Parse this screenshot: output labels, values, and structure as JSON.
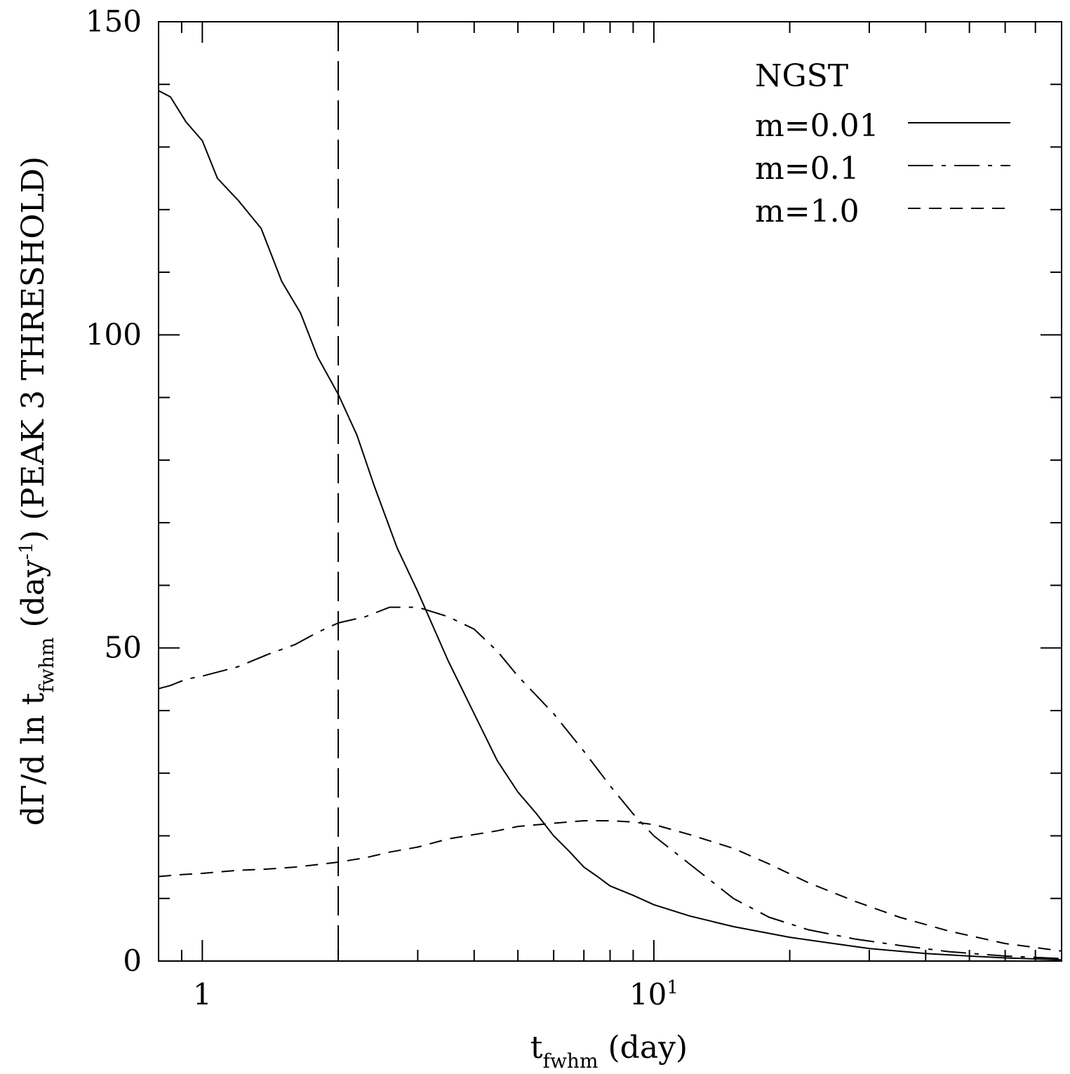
{
  "colors": {
    "ink": "#000000",
    "background": "#ffffff"
  },
  "chart_data": {
    "type": "line",
    "x_scale": "log",
    "xlim": [
      0.8,
      80
    ],
    "ylim": [
      0,
      150
    ],
    "xlabel": "t",
    "xlabel_sub": "fwhm",
    "xlabel_unit": " (day)",
    "ylabel_prefix": "dΓ/d ln t",
    "ylabel_sub": "fwhm",
    "ylabel_mid": " (day",
    "ylabel_sup": "-1",
    "ylabel_suffix": ")  (PEAK 3 THRESHOLD)",
    "x_tick_labels": [
      {
        "value": 1,
        "label": "1"
      },
      {
        "value": 10,
        "label": "10",
        "sup": "1"
      }
    ],
    "y_tick_labels": [
      {
        "value": 0,
        "label": "0"
      },
      {
        "value": 50,
        "label": "50"
      },
      {
        "value": 100,
        "label": "100"
      },
      {
        "value": 150,
        "label": "150"
      }
    ],
    "legend_title": "NGST",
    "legend_position": "top-right",
    "vertical_line": {
      "x": 2.0,
      "style": "long-dash"
    },
    "series": [
      {
        "name": "m=0.01",
        "style": "solid",
        "x": [
          0.8,
          0.85,
          0.92,
          1.0,
          1.08,
          1.2,
          1.35,
          1.5,
          1.65,
          1.8,
          2.0,
          2.2,
          2.4,
          2.7,
          3.0,
          3.5,
          4.0,
          4.5,
          5.0,
          5.5,
          6.0,
          6.5,
          7.0,
          7.5,
          8.0,
          9.0,
          10.0,
          12.0,
          15.0,
          20.0,
          25.0,
          30.0,
          40.0,
          50.0,
          60.0,
          80.0
        ],
        "y": [
          139,
          138,
          134,
          131,
          125,
          121.5,
          117,
          108.5,
          103.5,
          96.5,
          90.5,
          84,
          76,
          66,
          59,
          48,
          39.5,
          32,
          27,
          23.5,
          20,
          17.5,
          15,
          13.5,
          12,
          10.5,
          9,
          7.2,
          5.5,
          3.8,
          2.8,
          2.0,
          1.2,
          0.8,
          0.5,
          0.2
        ]
      },
      {
        "name": "m=0.1",
        "style": "long-short-dash",
        "x": [
          0.8,
          0.85,
          0.92,
          1.0,
          1.2,
          1.4,
          1.6,
          1.8,
          2.0,
          2.3,
          2.6,
          3.0,
          3.5,
          4.0,
          4.5,
          5.0,
          6.0,
          7.0,
          8.0,
          9.0,
          10.0,
          12.0,
          15.0,
          18.0,
          22.0,
          28.0,
          35.0,
          45.0,
          60.0,
          80.0
        ],
        "y": [
          43.5,
          44,
          45,
          45.5,
          47,
          49,
          50.5,
          52.5,
          54,
          55,
          56.5,
          56.5,
          55,
          53,
          49.5,
          45.5,
          39.5,
          33.5,
          28,
          23.5,
          20,
          15.5,
          10,
          7,
          5,
          3.5,
          2.5,
          1.5,
          0.8,
          0.4
        ]
      },
      {
        "name": "m=1.0",
        "style": "short-dash",
        "x": [
          0.8,
          0.9,
          1.0,
          1.2,
          1.4,
          1.6,
          1.8,
          2.0,
          2.3,
          2.6,
          3.0,
          3.5,
          4.0,
          4.5,
          5.0,
          6.0,
          7.0,
          8.0,
          9.0,
          10.0,
          12.0,
          15.0,
          18.0,
          22.0,
          28.0,
          35.0,
          45.0,
          60.0,
          80.0
        ],
        "y": [
          13.5,
          13.8,
          14,
          14.5,
          14.7,
          15,
          15.4,
          15.8,
          16.5,
          17.4,
          18.2,
          19.5,
          20.2,
          20.8,
          21.5,
          22,
          22.4,
          22.4,
          22.2,
          21.8,
          20.2,
          18,
          15.5,
          12.5,
          9.5,
          7,
          4.8,
          2.8,
          1.6
        ]
      }
    ]
  }
}
